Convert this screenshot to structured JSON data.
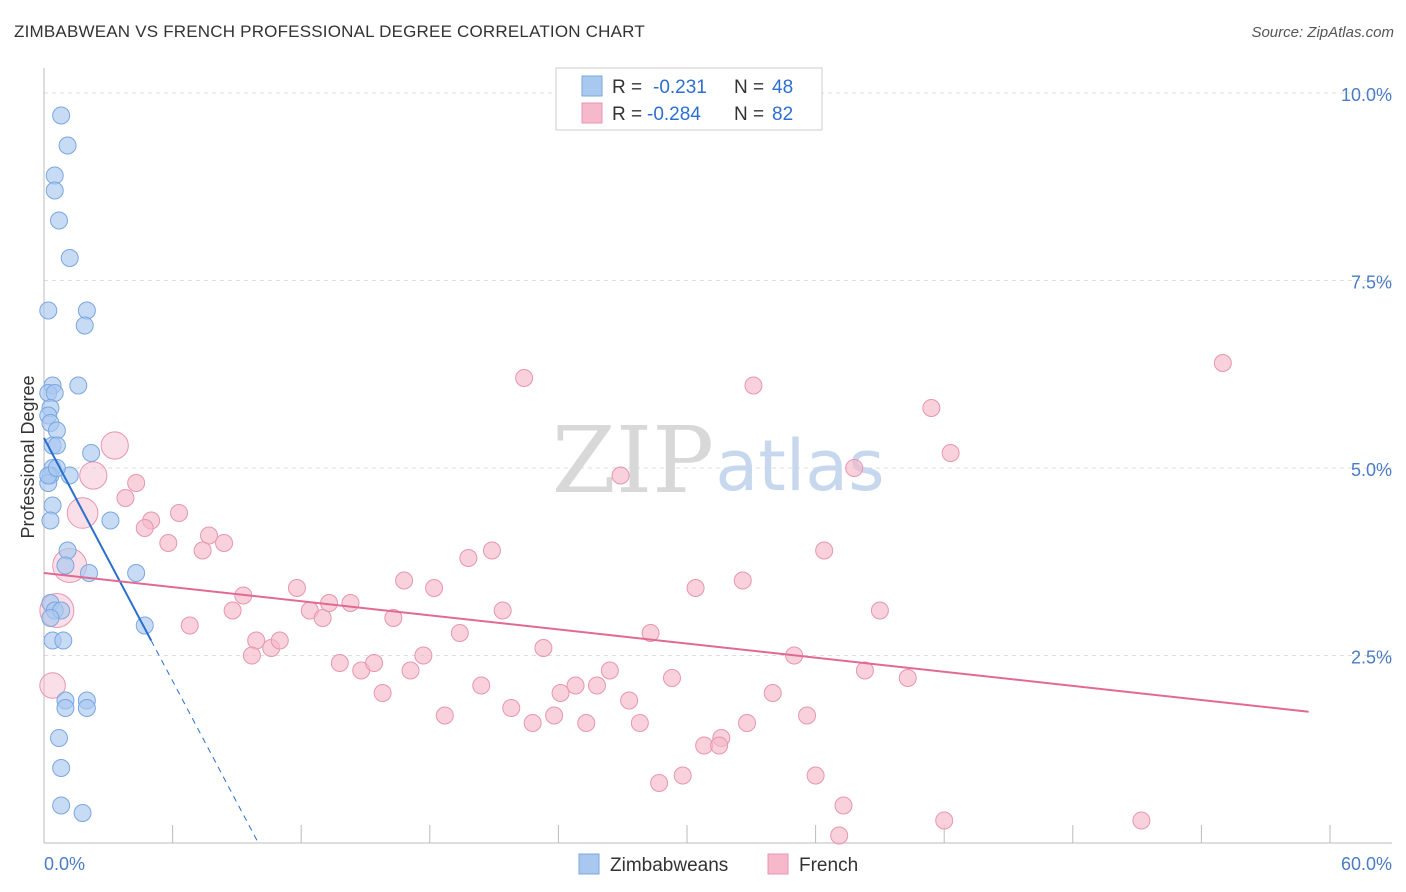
{
  "title": "ZIMBABWEAN VS FRENCH PROFESSIONAL DEGREE CORRELATION CHART",
  "source": "Source: ZipAtlas.com",
  "watermark": {
    "zip": "ZIP",
    "atlas": "atlas"
  },
  "colors": {
    "blue_fill": "#a9c8f0",
    "blue_stroke": "#7aa7e0",
    "blue_line": "#2a6fcc",
    "pink_fill": "#f5b9cb",
    "pink_stroke": "#e896b0",
    "pink_line": "#e06a94",
    "grid": "#dddddd",
    "tick_text": "#4a7cc4"
  },
  "legend": {
    "rows": [
      {
        "r_label": "R =",
        "r_value": "-0.231",
        "n_label": "N =",
        "n_value": "48",
        "series": "blue"
      },
      {
        "r_label": "R =",
        "r_value": "-0.284",
        "n_label": "N =",
        "n_value": "82",
        "series": "pink"
      }
    ]
  },
  "bottom_legend": [
    {
      "label": "Zimbabweans",
      "series": "blue"
    },
    {
      "label": "French",
      "series": "pink"
    }
  ],
  "chart_data": {
    "type": "scatter",
    "title": "ZIMBABWEAN VS FRENCH PROFESSIONAL DEGREE CORRELATION CHART",
    "xlabel": "",
    "ylabel": "Professional Degree",
    "xlim": [
      0,
      60
    ],
    "ylim": [
      0,
      10.2
    ],
    "x_tick_labels": [
      {
        "value": 0,
        "label": "0.0%"
      },
      {
        "value": 60,
        "label": "60.0%"
      }
    ],
    "y_tick_labels": [
      {
        "value": 2.5,
        "label": "2.5%"
      },
      {
        "value": 5.0,
        "label": "5.0%"
      },
      {
        "value": 7.5,
        "label": "7.5%"
      },
      {
        "value": 10.0,
        "label": "10.0%"
      }
    ],
    "x_minor_ticks": [
      0,
      6,
      12,
      18,
      24,
      30,
      36,
      42,
      48,
      54,
      60
    ],
    "series": [
      {
        "name": "Zimbabweans",
        "color": "blue",
        "points": [
          [
            0.8,
            9.7,
            1
          ],
          [
            1.1,
            9.3,
            1
          ],
          [
            0.5,
            8.9,
            1
          ],
          [
            0.5,
            8.7,
            1
          ],
          [
            0.7,
            8.3,
            1
          ],
          [
            1.2,
            7.8,
            1
          ],
          [
            0.2,
            7.1,
            1
          ],
          [
            2.0,
            7.1,
            1
          ],
          [
            1.9,
            6.9,
            1
          ],
          [
            1.6,
            6.1,
            1
          ],
          [
            0.4,
            6.1,
            1
          ],
          [
            0.2,
            6.0,
            1
          ],
          [
            0.5,
            6.0,
            1
          ],
          [
            0.3,
            5.8,
            1
          ],
          [
            0.2,
            5.7,
            1
          ],
          [
            0.3,
            5.6,
            1
          ],
          [
            0.6,
            5.5,
            1
          ],
          [
            0.4,
            5.3,
            1
          ],
          [
            0.6,
            5.3,
            1
          ],
          [
            2.2,
            5.2,
            1
          ],
          [
            0.4,
            5.0,
            1
          ],
          [
            0.3,
            4.9,
            1
          ],
          [
            1.2,
            4.9,
            1
          ],
          [
            0.2,
            4.8,
            1
          ],
          [
            0.4,
            4.5,
            1
          ],
          [
            0.3,
            4.3,
            1
          ],
          [
            3.1,
            4.3,
            1
          ],
          [
            1.1,
            3.9,
            1
          ],
          [
            1.0,
            3.7,
            1
          ],
          [
            2.1,
            3.6,
            1
          ],
          [
            4.3,
            3.6,
            1
          ],
          [
            0.3,
            3.2,
            1
          ],
          [
            0.5,
            3.1,
            1
          ],
          [
            0.8,
            3.1,
            1
          ],
          [
            0.3,
            3.0,
            1
          ],
          [
            4.7,
            2.9,
            1
          ],
          [
            0.4,
            2.7,
            1
          ],
          [
            0.9,
            2.7,
            1
          ],
          [
            1.0,
            1.9,
            1
          ],
          [
            1.0,
            1.8,
            1
          ],
          [
            2.0,
            1.9,
            1
          ],
          [
            2.0,
            1.8,
            1
          ],
          [
            0.7,
            1.4,
            1
          ],
          [
            0.8,
            1.0,
            1
          ],
          [
            0.8,
            0.5,
            1
          ],
          [
            1.8,
            0.4,
            1
          ],
          [
            0.2,
            4.9,
            1
          ],
          [
            0.6,
            5.0,
            1
          ]
        ]
      },
      {
        "name": "French",
        "color": "pink",
        "points": [
          [
            3.3,
            5.3,
            1.6
          ],
          [
            2.3,
            4.9,
            1.6
          ],
          [
            1.8,
            4.4,
            1.8
          ],
          [
            1.2,
            3.7,
            2.0
          ],
          [
            0.6,
            3.1,
            2.0
          ],
          [
            0.4,
            2.1,
            1.5
          ],
          [
            4.3,
            4.8,
            1
          ],
          [
            3.8,
            4.6,
            1
          ],
          [
            5.0,
            4.3,
            1
          ],
          [
            4.7,
            4.2,
            1
          ],
          [
            6.3,
            4.4,
            1
          ],
          [
            7.7,
            4.1,
            1
          ],
          [
            5.8,
            4.0,
            1
          ],
          [
            7.4,
            3.9,
            1
          ],
          [
            8.4,
            4.0,
            1
          ],
          [
            6.8,
            2.9,
            1
          ],
          [
            8.8,
            3.1,
            1
          ],
          [
            9.3,
            3.3,
            1
          ],
          [
            9.9,
            2.7,
            1
          ],
          [
            9.7,
            2.5,
            1
          ],
          [
            10.6,
            2.6,
            1
          ],
          [
            11.0,
            2.7,
            1
          ],
          [
            11.8,
            3.4,
            1
          ],
          [
            12.4,
            3.1,
            1
          ],
          [
            13.0,
            3.0,
            1
          ],
          [
            13.3,
            3.2,
            1
          ],
          [
            13.8,
            2.4,
            1
          ],
          [
            14.3,
            3.2,
            1
          ],
          [
            14.8,
            2.3,
            1
          ],
          [
            15.4,
            2.4,
            1
          ],
          [
            15.8,
            2.0,
            1
          ],
          [
            16.3,
            3.0,
            1
          ],
          [
            16.8,
            3.5,
            1
          ],
          [
            17.1,
            2.3,
            1
          ],
          [
            17.7,
            2.5,
            1
          ],
          [
            18.2,
            3.4,
            1
          ],
          [
            18.7,
            1.7,
            1
          ],
          [
            19.4,
            2.8,
            1
          ],
          [
            19.8,
            3.8,
            1
          ],
          [
            20.4,
            2.1,
            1
          ],
          [
            20.9,
            3.9,
            1
          ],
          [
            21.4,
            3.1,
            1
          ],
          [
            21.8,
            1.8,
            1
          ],
          [
            22.4,
            6.2,
            1
          ],
          [
            22.8,
            1.6,
            1
          ],
          [
            23.3,
            2.6,
            1
          ],
          [
            23.8,
            1.7,
            1
          ],
          [
            24.1,
            2.0,
            1
          ],
          [
            24.8,
            2.1,
            1
          ],
          [
            25.3,
            1.6,
            1
          ],
          [
            25.8,
            2.1,
            1
          ],
          [
            26.4,
            2.3,
            1
          ],
          [
            26.9,
            4.9,
            1
          ],
          [
            27.3,
            1.9,
            1
          ],
          [
            27.8,
            1.6,
            1
          ],
          [
            28.3,
            2.8,
            1
          ],
          [
            28.7,
            0.8,
            1
          ],
          [
            29.3,
            2.2,
            1
          ],
          [
            29.8,
            0.9,
            1
          ],
          [
            30.4,
            3.4,
            1
          ],
          [
            30.8,
            1.3,
            1
          ],
          [
            31.6,
            1.4,
            1
          ],
          [
            32.6,
            3.5,
            1
          ],
          [
            32.8,
            1.6,
            1
          ],
          [
            33.1,
            6.1,
            1
          ],
          [
            34.0,
            2.0,
            1
          ],
          [
            35.0,
            2.5,
            1
          ],
          [
            35.6,
            1.7,
            1
          ],
          [
            36.0,
            0.9,
            1
          ],
          [
            36.4,
            3.9,
            1
          ],
          [
            37.3,
            0.5,
            1
          ],
          [
            37.8,
            5.0,
            1
          ],
          [
            38.3,
            2.3,
            1
          ],
          [
            39.0,
            3.1,
            1
          ],
          [
            40.3,
            2.2,
            1
          ],
          [
            41.4,
            5.8,
            1
          ],
          [
            42.3,
            5.2,
            1
          ],
          [
            42.0,
            0.3,
            1
          ],
          [
            51.2,
            0.3,
            1
          ],
          [
            55.0,
            6.4,
            1
          ],
          [
            37.1,
            0.1,
            1
          ],
          [
            31.5,
            1.3,
            1
          ]
        ]
      }
    ],
    "trendlines": [
      {
        "series": "Zimbabweans",
        "solid": [
          [
            0.0,
            5.4
          ],
          [
            5.0,
            2.7
          ]
        ],
        "dashed": [
          [
            5.0,
            2.7
          ],
          [
            10.0,
            0.0
          ]
        ]
      },
      {
        "series": "French",
        "solid": [
          [
            0.0,
            3.6
          ],
          [
            59.0,
            1.75
          ]
        ]
      }
    ]
  }
}
